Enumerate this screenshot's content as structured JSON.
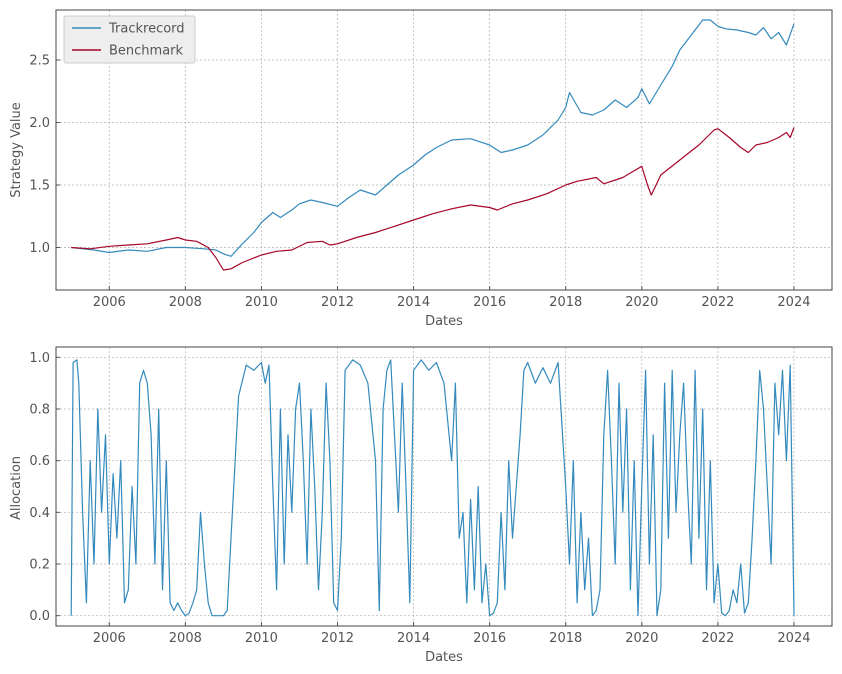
{
  "chart_data": [
    {
      "type": "line",
      "xlabel": "Dates",
      "ylabel": "Strategy Value",
      "xlim": [
        2004.6,
        2025.0
      ],
      "ylim": [
        0.66,
        2.9
      ],
      "xticks": [
        2006,
        2008,
        2010,
        2012,
        2014,
        2016,
        2018,
        2020,
        2022,
        2024
      ],
      "xtick_labels": [
        "2006",
        "2008",
        "2010",
        "2012",
        "2014",
        "2016",
        "2018",
        "2020",
        "2022",
        "2024"
      ],
      "yticks": [
        1.0,
        1.5,
        2.0,
        2.5
      ],
      "ytick_labels": [
        "1.0",
        "1.5",
        "2.0",
        "2.5"
      ],
      "grid": true,
      "legend_position": "top-left",
      "series": [
        {
          "name": "Trackrecord",
          "color": "#348abd",
          "x": [
            2005.0,
            2005.3,
            2005.6,
            2006.0,
            2006.5,
            2007.0,
            2007.5,
            2008.0,
            2008.5,
            2008.8,
            2009.0,
            2009.2,
            2009.5,
            2009.8,
            2010.0,
            2010.3,
            2010.5,
            2010.8,
            2011.0,
            2011.3,
            2011.6,
            2012.0,
            2012.3,
            2012.6,
            2013.0,
            2013.3,
            2013.6,
            2014.0,
            2014.3,
            2014.6,
            2015.0,
            2015.5,
            2016.0,
            2016.3,
            2016.6,
            2017.0,
            2017.4,
            2017.8,
            2018.0,
            2018.1,
            2018.4,
            2018.7,
            2019.0,
            2019.3,
            2019.6,
            2019.9,
            2020.0,
            2020.2,
            2020.5,
            2020.8,
            2021.0,
            2021.3,
            2021.6,
            2021.8,
            2022.0,
            2022.2,
            2022.5,
            2022.8,
            2023.0,
            2023.2,
            2023.4,
            2023.6,
            2023.8,
            2024.0
          ],
          "y": [
            1.0,
            0.99,
            0.98,
            0.96,
            0.98,
            0.97,
            1.0,
            1.0,
            0.99,
            0.98,
            0.95,
            0.93,
            1.03,
            1.12,
            1.2,
            1.28,
            1.24,
            1.3,
            1.35,
            1.38,
            1.36,
            1.33,
            1.4,
            1.46,
            1.42,
            1.5,
            1.58,
            1.66,
            1.74,
            1.8,
            1.86,
            1.87,
            1.82,
            1.76,
            1.78,
            1.82,
            1.9,
            2.02,
            2.12,
            2.24,
            2.08,
            2.06,
            2.1,
            2.18,
            2.12,
            2.2,
            2.27,
            2.15,
            2.3,
            2.45,
            2.58,
            2.7,
            2.82,
            2.82,
            2.77,
            2.75,
            2.74,
            2.72,
            2.7,
            2.76,
            2.67,
            2.72,
            2.62,
            2.79
          ]
        },
        {
          "name": "Benchmark",
          "color": "#a60628",
          "x": [
            2005.0,
            2005.5,
            2006.0,
            2006.5,
            2007.0,
            2007.5,
            2007.8,
            2008.0,
            2008.3,
            2008.6,
            2008.8,
            2009.0,
            2009.2,
            2009.5,
            2010.0,
            2010.4,
            2010.8,
            2011.2,
            2011.6,
            2011.8,
            2012.0,
            2012.5,
            2013.0,
            2013.5,
            2014.0,
            2014.5,
            2015.0,
            2015.5,
            2016.0,
            2016.2,
            2016.6,
            2017.0,
            2017.5,
            2018.0,
            2018.3,
            2018.8,
            2019.0,
            2019.5,
            2020.0,
            2020.15,
            2020.25,
            2020.5,
            2021.0,
            2021.5,
            2021.9,
            2022.0,
            2022.3,
            2022.6,
            2022.8,
            2023.0,
            2023.3,
            2023.6,
            2023.8,
            2023.9,
            2024.0
          ],
          "y": [
            1.0,
            0.99,
            1.01,
            1.02,
            1.03,
            1.06,
            1.08,
            1.06,
            1.05,
            1.0,
            0.92,
            0.82,
            0.83,
            0.88,
            0.94,
            0.97,
            0.98,
            1.04,
            1.05,
            1.02,
            1.03,
            1.08,
            1.12,
            1.17,
            1.22,
            1.27,
            1.31,
            1.34,
            1.32,
            1.3,
            1.35,
            1.38,
            1.43,
            1.5,
            1.53,
            1.56,
            1.51,
            1.56,
            1.65,
            1.5,
            1.42,
            1.58,
            1.7,
            1.82,
            1.94,
            1.95,
            1.88,
            1.8,
            1.76,
            1.82,
            1.84,
            1.88,
            1.92,
            1.88,
            1.96
          ]
        }
      ]
    },
    {
      "type": "line",
      "xlabel": "Dates",
      "ylabel": "Allocation",
      "xlim": [
        2004.6,
        2025.0
      ],
      "ylim": [
        -0.04,
        1.04
      ],
      "xticks": [
        2006,
        2008,
        2010,
        2012,
        2014,
        2016,
        2018,
        2020,
        2022,
        2024
      ],
      "xtick_labels": [
        "2006",
        "2008",
        "2010",
        "2012",
        "2014",
        "2016",
        "2018",
        "2020",
        "2022",
        "2024"
      ],
      "yticks": [
        0.0,
        0.2,
        0.4,
        0.6,
        0.8,
        1.0
      ],
      "ytick_labels": [
        "0.0",
        "0.2",
        "0.4",
        "0.6",
        "0.8",
        "1.0"
      ],
      "grid": true,
      "series": [
        {
          "color": "#348abd",
          "x": [
            2005.0,
            2005.05,
            2005.15,
            2005.2,
            2005.3,
            2005.4,
            2005.5,
            2005.6,
            2005.7,
            2005.8,
            2005.9,
            2006.0,
            2006.1,
            2006.2,
            2006.3,
            2006.4,
            2006.5,
            2006.6,
            2006.7,
            2006.8,
            2006.9,
            2007.0,
            2007.1,
            2007.2,
            2007.3,
            2007.4,
            2007.5,
            2007.6,
            2007.7,
            2007.8,
            2007.9,
            2008.0,
            2008.1,
            2008.2,
            2008.3,
            2008.4,
            2008.5,
            2008.6,
            2008.7,
            2008.8,
            2008.9,
            2009.0,
            2009.1,
            2009.2,
            2009.4,
            2009.6,
            2009.8,
            2010.0,
            2010.1,
            2010.2,
            2010.3,
            2010.4,
            2010.5,
            2010.6,
            2010.7,
            2010.8,
            2010.9,
            2011.0,
            2011.1,
            2011.2,
            2011.3,
            2011.4,
            2011.5,
            2011.6,
            2011.7,
            2011.8,
            2011.9,
            2012.0,
            2012.1,
            2012.2,
            2012.4,
            2012.6,
            2012.8,
            2013.0,
            2013.1,
            2013.2,
            2013.3,
            2013.4,
            2013.5,
            2013.6,
            2013.7,
            2013.8,
            2013.9,
            2014.0,
            2014.2,
            2014.4,
            2014.6,
            2014.8,
            2015.0,
            2015.1,
            2015.2,
            2015.3,
            2015.4,
            2015.5,
            2015.6,
            2015.7,
            2015.8,
            2015.9,
            2016.0,
            2016.1,
            2016.2,
            2016.3,
            2016.4,
            2016.5,
            2016.6,
            2016.7,
            2016.8,
            2016.9,
            2017.0,
            2017.2,
            2017.4,
            2017.6,
            2017.8,
            2018.0,
            2018.1,
            2018.2,
            2018.3,
            2018.4,
            2018.5,
            2018.6,
            2018.7,
            2018.8,
            2018.9,
            2019.0,
            2019.1,
            2019.2,
            2019.3,
            2019.4,
            2019.5,
            2019.6,
            2019.7,
            2019.8,
            2019.9,
            2020.0,
            2020.1,
            2020.2,
            2020.3,
            2020.4,
            2020.5,
            2020.6,
            2020.7,
            2020.8,
            2020.9,
            2021.0,
            2021.1,
            2021.2,
            2021.3,
            2021.4,
            2021.5,
            2021.6,
            2021.7,
            2021.8,
            2021.9,
            2022.0,
            2022.1,
            2022.2,
            2022.3,
            2022.4,
            2022.5,
            2022.6,
            2022.7,
            2022.8,
            2022.9,
            2023.0,
            2023.1,
            2023.2,
            2023.3,
            2023.4,
            2023.5,
            2023.6,
            2023.7,
            2023.8,
            2023.9,
            2024.0
          ],
          "y": [
            0.0,
            0.98,
            0.99,
            0.9,
            0.4,
            0.05,
            0.6,
            0.2,
            0.8,
            0.4,
            0.7,
            0.2,
            0.55,
            0.3,
            0.6,
            0.05,
            0.1,
            0.5,
            0.2,
            0.9,
            0.95,
            0.9,
            0.7,
            0.2,
            0.8,
            0.1,
            0.6,
            0.05,
            0.02,
            0.05,
            0.02,
            0.0,
            0.01,
            0.05,
            0.1,
            0.4,
            0.2,
            0.05,
            0.0,
            0.0,
            0.0,
            0.0,
            0.02,
            0.3,
            0.85,
            0.97,
            0.95,
            0.98,
            0.9,
            0.97,
            0.5,
            0.1,
            0.8,
            0.2,
            0.7,
            0.4,
            0.8,
            0.9,
            0.6,
            0.2,
            0.8,
            0.5,
            0.1,
            0.4,
            0.9,
            0.6,
            0.05,
            0.02,
            0.3,
            0.95,
            0.99,
            0.97,
            0.9,
            0.6,
            0.02,
            0.8,
            0.95,
            0.99,
            0.7,
            0.4,
            0.9,
            0.5,
            0.05,
            0.95,
            0.99,
            0.95,
            0.98,
            0.9,
            0.6,
            0.9,
            0.3,
            0.4,
            0.05,
            0.45,
            0.1,
            0.5,
            0.05,
            0.2,
            0.0,
            0.01,
            0.05,
            0.4,
            0.1,
            0.6,
            0.3,
            0.5,
            0.7,
            0.95,
            0.98,
            0.9,
            0.96,
            0.9,
            0.98,
            0.5,
            0.2,
            0.6,
            0.05,
            0.4,
            0.1,
            0.3,
            0.0,
            0.02,
            0.1,
            0.7,
            0.95,
            0.6,
            0.2,
            0.9,
            0.4,
            0.8,
            0.1,
            0.6,
            0.0,
            0.5,
            0.95,
            0.2,
            0.7,
            0.0,
            0.1,
            0.9,
            0.3,
            0.95,
            0.4,
            0.7,
            0.9,
            0.5,
            0.2,
            0.95,
            0.3,
            0.8,
            0.1,
            0.6,
            0.05,
            0.2,
            0.01,
            0.0,
            0.02,
            0.1,
            0.05,
            0.2,
            0.01,
            0.05,
            0.3,
            0.6,
            0.95,
            0.8,
            0.5,
            0.2,
            0.9,
            0.7,
            0.95,
            0.6,
            0.97,
            0.0
          ]
        }
      ]
    }
  ]
}
